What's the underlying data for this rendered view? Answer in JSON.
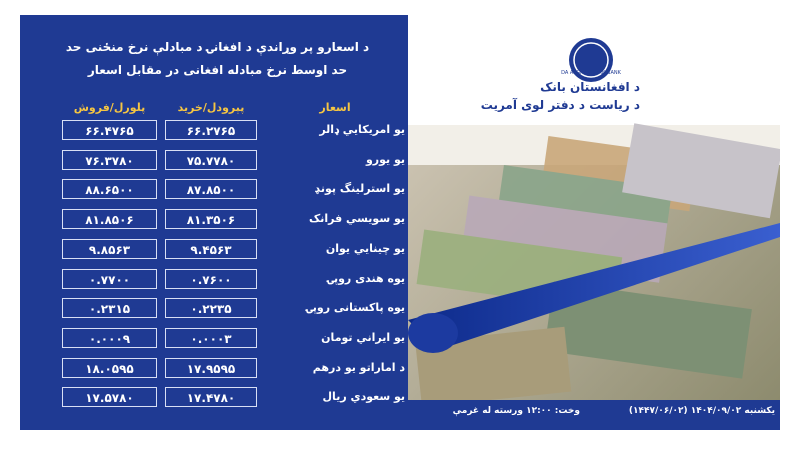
{
  "header": {
    "title_line1": "د اسعارو پر وړاندې د افغانۍ د مبادلې نرخ منځنی حد",
    "title_line2": "حد اوسط نرخ مبادله افغانی در مقابل اسعار"
  },
  "bank": {
    "logo_text": "DA AFGHANISTAN BANK",
    "name": "د افغانستان بانک",
    "department": "د رياست د دفتر لوی آمريت"
  },
  "table": {
    "columns": [
      "اسعار",
      "پېرودل/خريد",
      "پلورل/فروش"
    ],
    "rows": [
      [
        "يو امريکايي ډالر",
        "۶۶.۲۷۶۵",
        "۶۶.۴۷۶۵"
      ],
      [
        "يو يورو",
        "۷۵.۷۷۸۰",
        "۷۶.۳۷۸۰"
      ],
      [
        "يو استرلينگ پونډ",
        "۸۷.۸۵۰۰",
        "۸۸.۶۵۰۰"
      ],
      [
        "يو سويسي فرانک",
        "۸۱.۳۵۰۶",
        "۸۱.۸۵۰۶"
      ],
      [
        "يو چينايي يوان",
        "۹.۴۵۶۳",
        "۹.۸۵۶۳"
      ],
      [
        "يوه هندی روپۍ",
        "۰.۷۶۰۰",
        "۰.۷۷۰۰"
      ],
      [
        "يوه پاکستانی روپۍ",
        "۰.۲۲۳۵",
        "۰.۲۳۱۵"
      ],
      [
        "يو ايراني تومان",
        "۰.۰۰۰۳",
        "۰.۰۰۰۹"
      ],
      [
        "د اماراتو يو درهم",
        "۱۷.۹۵۹۵",
        "۱۸.۰۵۹۵"
      ],
      [
        "يو سعودي ريال",
        "۱۷.۴۷۸۰",
        "۱۷.۵۷۸۰"
      ]
    ]
  },
  "footer": {
    "date": "يکشنبه ۱۴۰۴/۰۹/۰۲ (۱۴۴۷/۰۶/۰۲)",
    "time": "وخت: ۱۲:۰۰ ورسته له غرمې"
  }
}
